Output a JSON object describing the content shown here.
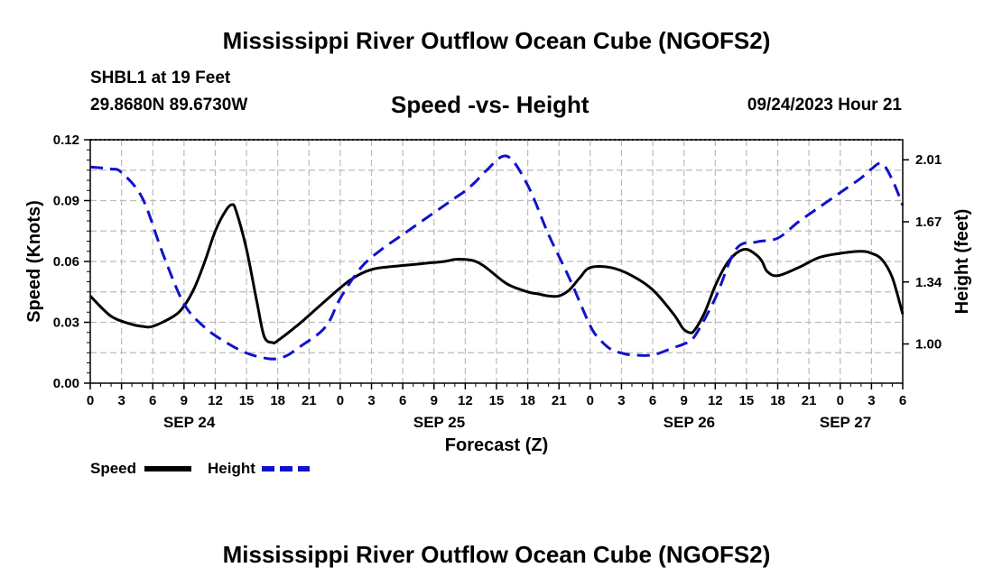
{
  "header": {
    "title": "Mississippi River Outflow Ocean Cube (NGOFS2)",
    "station": "SHBL1 at 19 Feet",
    "coords": "29.8680N  89.6730W",
    "subtitle": "Speed -vs- Height",
    "datetime": "09/24/2023 Hour 21"
  },
  "footer": {
    "title": "Mississippi River Outflow Ocean Cube (NGOFS2)"
  },
  "chart_data": {
    "type": "line",
    "title": "Speed -vs- Height",
    "xlabel": "Forecast (Z)",
    "ylabel": "Speed (Knots)",
    "y2label": "Height (feet)",
    "x_unit": "hours from SEP 24 00Z",
    "xlim": [
      0,
      78
    ],
    "ylim": [
      0,
      0.12
    ],
    "y2lim": [
      0.785,
      2.12
    ],
    "xticks": [
      0,
      3,
      6,
      9,
      12,
      15,
      18,
      21,
      24,
      27,
      30,
      33,
      36,
      39,
      42,
      45,
      48,
      51,
      54,
      57,
      60,
      63,
      66,
      69,
      72,
      75,
      78
    ],
    "xtick_labels": [
      "0",
      "3",
      "6",
      "9",
      "12",
      "15",
      "18",
      "21",
      "0",
      "3",
      "6",
      "9",
      "12",
      "15",
      "18",
      "21",
      "0",
      "3",
      "6",
      "9",
      "12",
      "15",
      "18",
      "21",
      "0",
      "3",
      "6"
    ],
    "date_labels": [
      {
        "x": 9.5,
        "label": "SEP 24"
      },
      {
        "x": 33.5,
        "label": "SEP 25"
      },
      {
        "x": 57.5,
        "label": "SEP 26"
      },
      {
        "x": 72.5,
        "label": "SEP 27"
      }
    ],
    "yticks": [
      0,
      0.03,
      0.06,
      0.09,
      0.12
    ],
    "ytick_labels": [
      "0.00",
      "0.03",
      "0.06",
      "0.09",
      "0.12"
    ],
    "y2ticks": [
      1.0,
      1.34,
      1.67,
      2.01
    ],
    "y2tick_labels": [
      "1.00",
      "1.34",
      "1.67",
      "2.01"
    ],
    "grid": true,
    "legend_position": "bottom-left",
    "series": [
      {
        "name": "Speed",
        "axis": "left",
        "color": "#000000",
        "style": "solid",
        "x": [
          0,
          2,
          4,
          5,
          6,
          8,
          9,
          10,
          11,
          12,
          13,
          13.6,
          14,
          15,
          16,
          16.7,
          17.5,
          18,
          20,
          22,
          24,
          25,
          26,
          27,
          28,
          30,
          32,
          34,
          35,
          36,
          37,
          38,
          40,
          42,
          43,
          44,
          45,
          46,
          47,
          48,
          50,
          52,
          54,
          56,
          56.9,
          57.5,
          58,
          59,
          60,
          61,
          62,
          63,
          64,
          64.5,
          65,
          66,
          68,
          70,
          72,
          74,
          75,
          76,
          77,
          78
        ],
        "y": [
          0.043,
          0.033,
          0.029,
          0.028,
          0.028,
          0.033,
          0.038,
          0.047,
          0.06,
          0.075,
          0.085,
          0.088,
          0.085,
          0.066,
          0.04,
          0.023,
          0.02,
          0.021,
          0.029,
          0.038,
          0.047,
          0.051,
          0.054,
          0.056,
          0.057,
          0.058,
          0.059,
          0.06,
          0.061,
          0.061,
          0.06,
          0.057,
          0.049,
          0.045,
          0.044,
          0.043,
          0.043,
          0.046,
          0.052,
          0.057,
          0.057,
          0.053,
          0.046,
          0.034,
          0.027,
          0.025,
          0.026,
          0.035,
          0.048,
          0.058,
          0.064,
          0.066,
          0.063,
          0.06,
          0.055,
          0.053,
          0.057,
          0.062,
          0.064,
          0.065,
          0.064,
          0.061,
          0.052,
          0.034
        ]
      },
      {
        "name": "Height",
        "axis": "right",
        "color": "#1111cc",
        "style": "dashed",
        "x": [
          0,
          2,
          3,
          5,
          7,
          9,
          11,
          13,
          15,
          17,
          18,
          19,
          20,
          22,
          23,
          24,
          26,
          28,
          30,
          32,
          34,
          35,
          36,
          37,
          38,
          40,
          42,
          44,
          46,
          48,
          49,
          50,
          51,
          52,
          54,
          56,
          57,
          58,
          60,
          62,
          64,
          66,
          68,
          70,
          72,
          73,
          74,
          75,
          76,
          77,
          78
        ],
        "y": [
          1.97,
          1.96,
          1.94,
          1.8,
          1.49,
          1.22,
          1.09,
          1.01,
          0.95,
          0.92,
          0.92,
          0.94,
          0.98,
          1.06,
          1.13,
          1.25,
          1.42,
          1.52,
          1.6,
          1.68,
          1.76,
          1.8,
          1.84,
          1.89,
          1.95,
          2.03,
          1.87,
          1.6,
          1.36,
          1.1,
          1.02,
          0.97,
          0.95,
          0.94,
          0.94,
          0.98,
          1.0,
          1.04,
          1.25,
          1.52,
          1.56,
          1.58,
          1.67,
          1.75,
          1.83,
          1.87,
          1.91,
          1.96,
          1.99,
          1.9,
          1.76
        ]
      }
    ]
  }
}
